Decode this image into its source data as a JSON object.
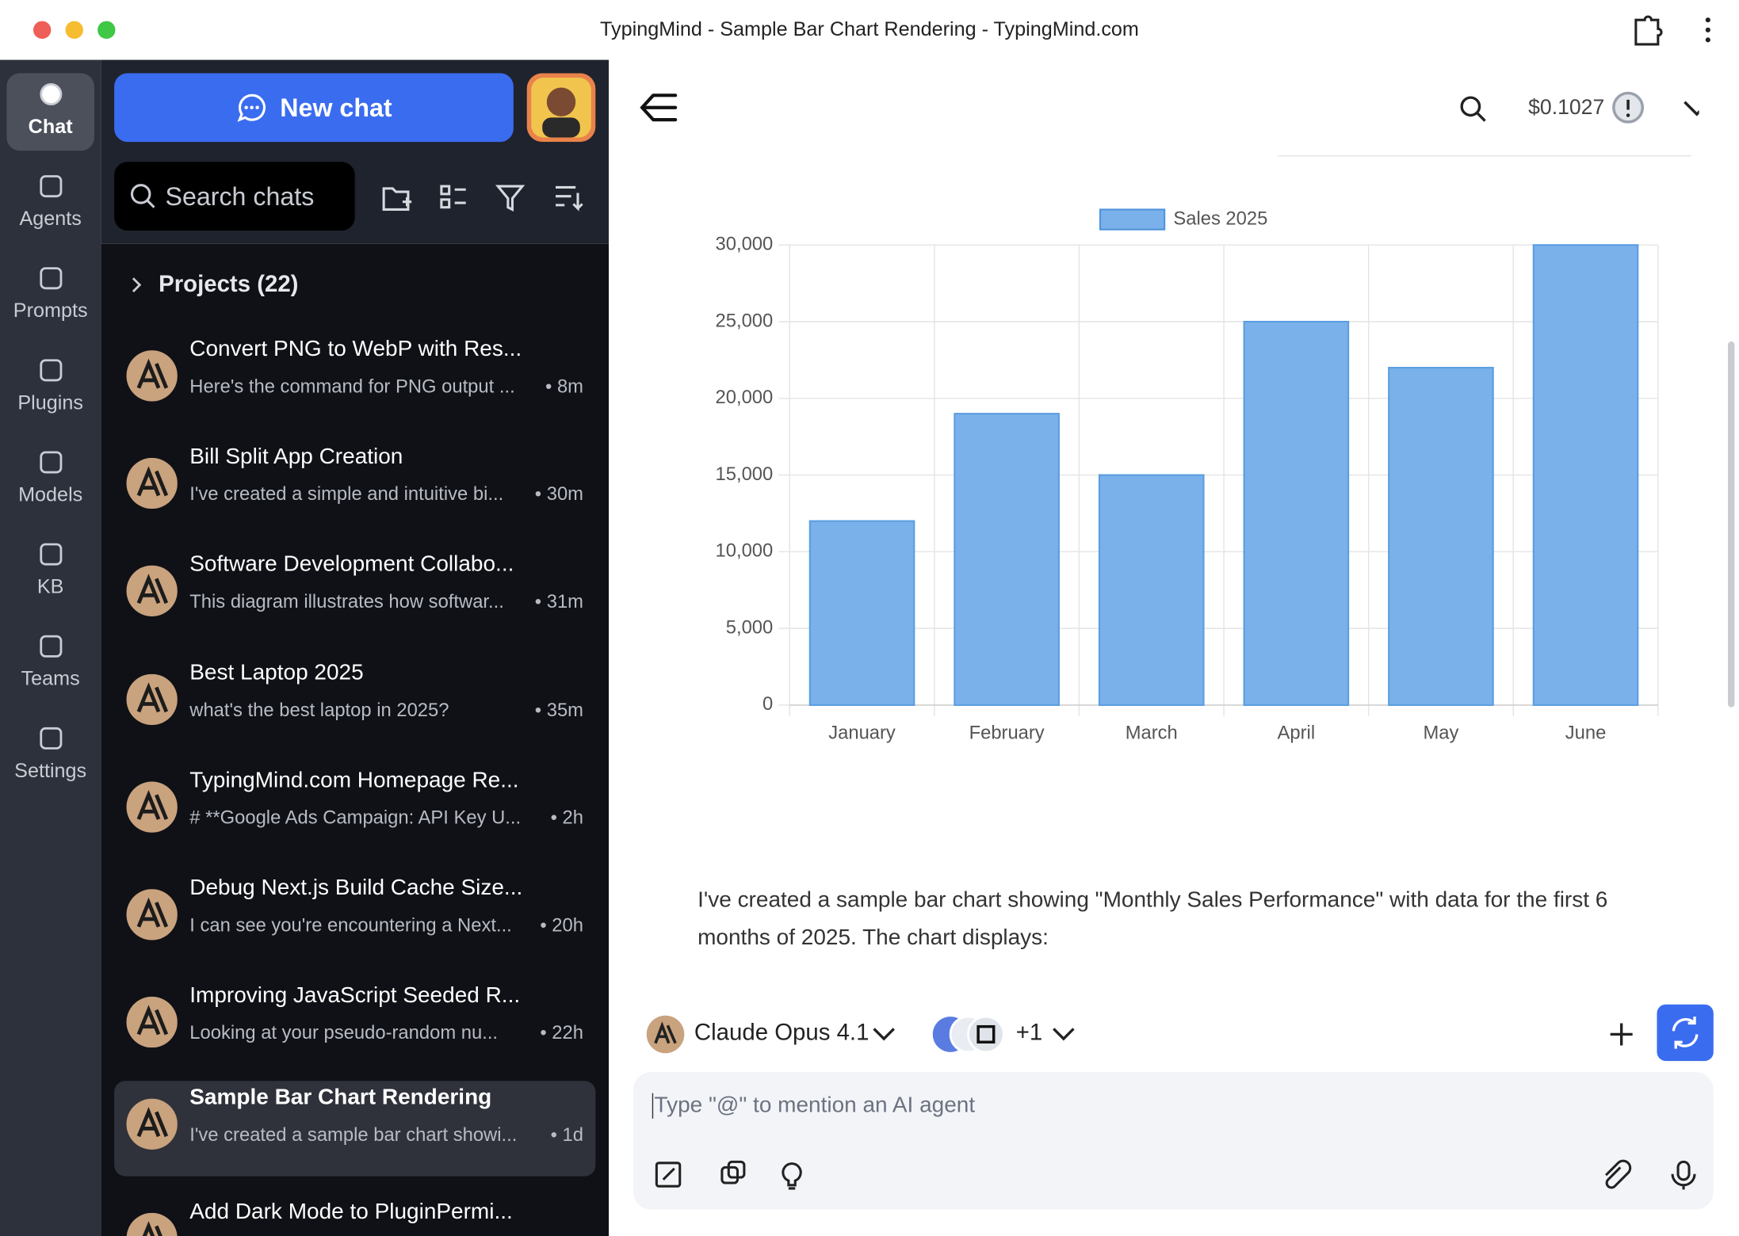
{
  "window": {
    "title": "TypingMind - Sample Bar Chart Rendering - TypingMind.com"
  },
  "nav": [
    "Chat",
    "Agents",
    "Prompts",
    "Plugins",
    "Models",
    "KB",
    "Teams",
    "Settings"
  ],
  "sidebar": {
    "new_chat": "New chat",
    "search_placeholder": "Search chats",
    "projects": "Projects (22)",
    "chats": [
      {
        "title": "Convert PNG to WebP with Res...",
        "preview": "Here's the command for PNG output ...",
        "time": "• 8m"
      },
      {
        "title": "Bill Split App Creation",
        "preview": "I've created a simple and intuitive bi...",
        "time": "• 30m"
      },
      {
        "title": "Software Development Collabo...",
        "preview": "This diagram illustrates how softwar...",
        "time": "• 31m"
      },
      {
        "title": "Best Laptop 2025",
        "preview": "what's the best laptop in 2025?",
        "time": "• 35m"
      },
      {
        "title": "TypingMind.com Homepage Re...",
        "preview": "# **Google Ads Campaign: API Key U...",
        "time": "• 2h"
      },
      {
        "title": "Debug Next.js Build Cache Size...",
        "preview": "I can see you're encountering a Next...",
        "time": "• 20h"
      },
      {
        "title": "Improving JavaScript Seeded R...",
        "preview": "Looking at your pseudo-random nu...",
        "time": "• 22h"
      },
      {
        "title": "Sample Bar Chart Rendering",
        "preview": "I've created a sample bar chart showi...",
        "time": "• 1d"
      },
      {
        "title": "Add Dark Mode to PluginPermi..."
      }
    ]
  },
  "header": {
    "cost": "$0.1027"
  },
  "message": "I've created a sample bar chart showing \"Monthly Sales Performance\" with data for the first 6 months of 2025. The chart displays:",
  "composer": {
    "model": "Claude Opus 4.1",
    "extra_agents": "+1",
    "placeholder": "Type \"@\" to mention an AI agent"
  },
  "chart_data": {
    "type": "bar",
    "categories": [
      "January",
      "February",
      "March",
      "April",
      "May",
      "June"
    ],
    "series": [
      {
        "name": "Sales 2025",
        "color": "#7ab1ea",
        "values": [
          12000,
          19000,
          15000,
          25000,
          22000,
          30000
        ]
      }
    ],
    "ylim": [
      0,
      30000
    ],
    "yticks": [
      0,
      {
        "value": 5000,
        "label": "5,000"
      },
      {
        "value": 10000,
        "label": "10,000"
      },
      {
        "value": 15000,
        "label": "15,000"
      },
      {
        "value": 20000,
        "label": "20,000"
      },
      {
        "value": 25000,
        "label": "25,000"
      },
      {
        "value": 30000,
        "label": "30,000"
      }
    ],
    "grid": true
  }
}
